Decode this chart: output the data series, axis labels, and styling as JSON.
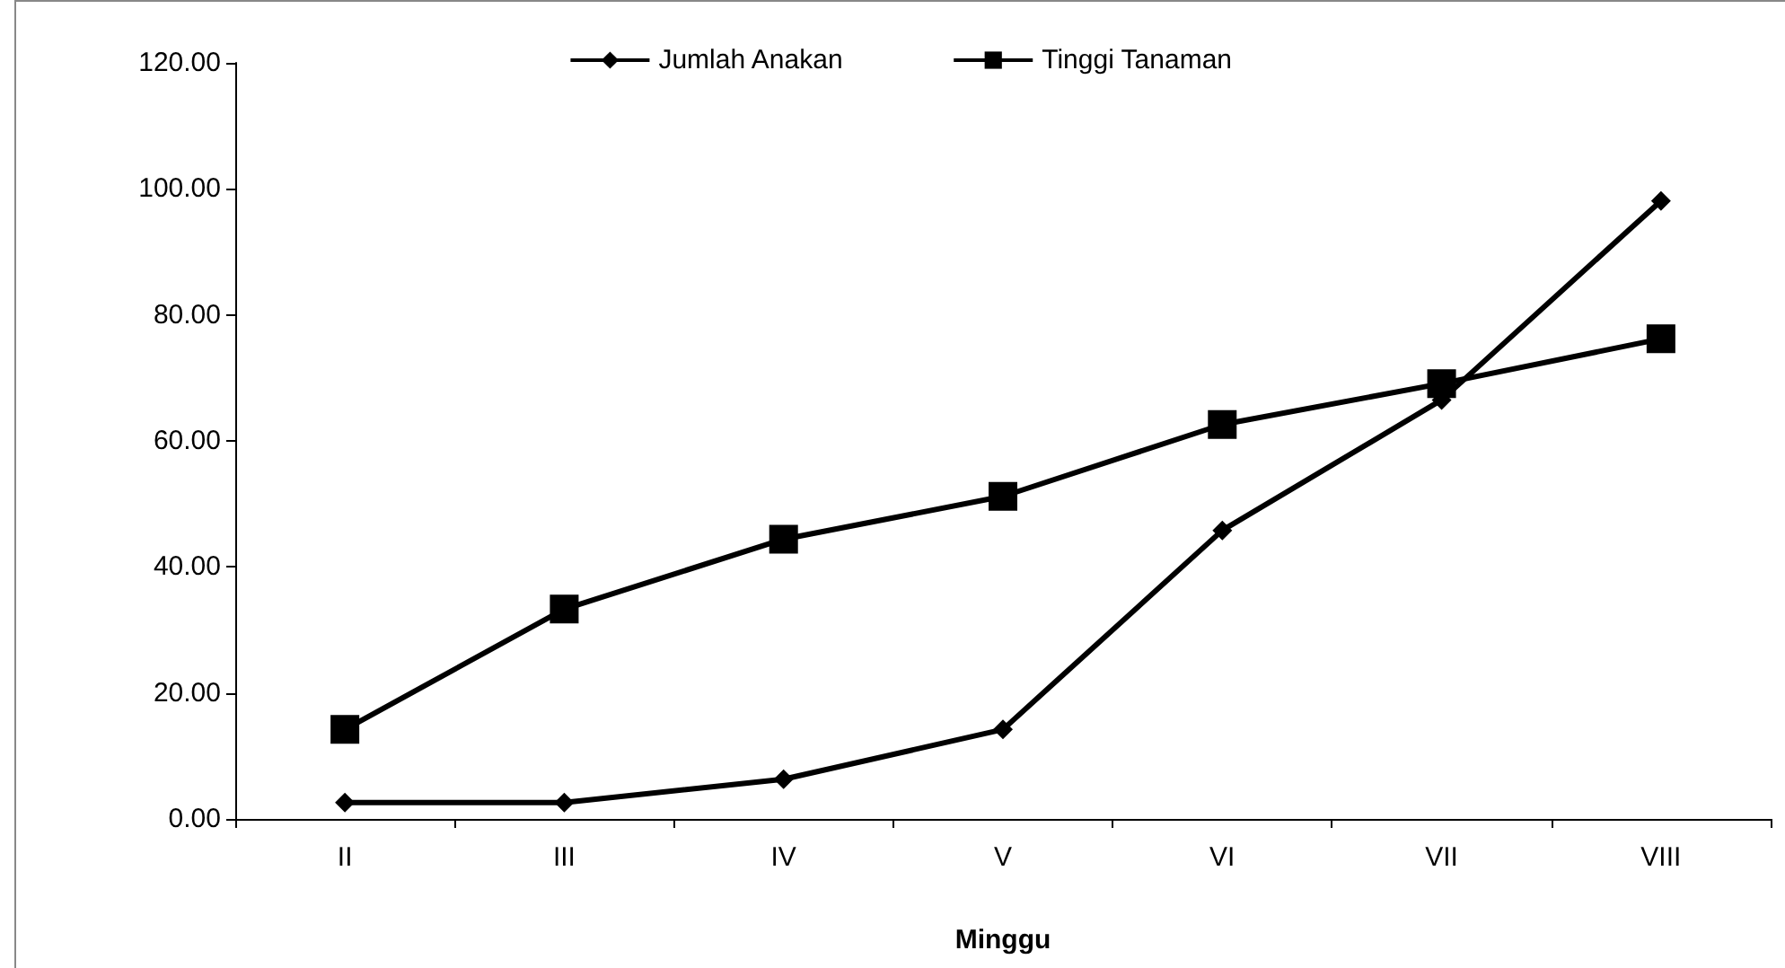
{
  "chart_data": {
    "type": "line",
    "xlabel": "Minggu",
    "categories": [
      "II",
      "III",
      "IV",
      "V",
      "VI",
      "VII",
      "VIII"
    ],
    "series": [
      {
        "name": "Jumlah Anakan",
        "color": "#000000",
        "marker": "diamond",
        "values": [
          2.6,
          2.6,
          6.3,
          14.2,
          45.8,
          66.5,
          98.1
        ]
      },
      {
        "name": "Tinggi Tanaman",
        "color": "#000000",
        "marker": "square",
        "values": [
          14.2,
          33.3,
          44.4,
          51.2,
          62.6,
          69.1,
          76.2
        ]
      }
    ],
    "ylim": [
      0,
      120
    ],
    "yticks": [
      {
        "value": 0,
        "label": "0.00"
      },
      {
        "value": 20,
        "label": "20.00"
      },
      {
        "value": 40,
        "label": "40.00"
      },
      {
        "value": 60,
        "label": "60.00"
      },
      {
        "value": 80,
        "label": "80.00"
      },
      {
        "value": 100,
        "label": "100.00"
      },
      {
        "value": 120,
        "label": "120.00"
      }
    ],
    "grid": false,
    "legend": "top",
    "line_style": "solid"
  }
}
